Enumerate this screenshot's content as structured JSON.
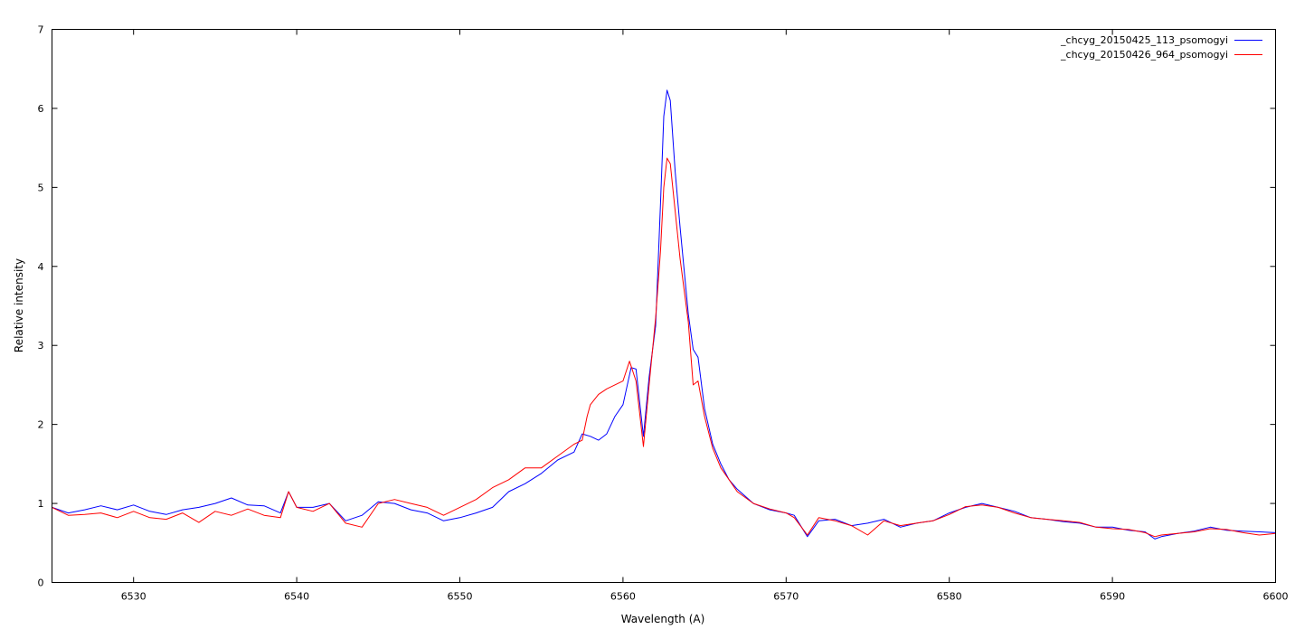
{
  "chart_data": {
    "type": "line",
    "title": "",
    "xlabel": "Wavelength (A)",
    "ylabel": "Relative intensity",
    "xlim": [
      6525,
      6600
    ],
    "ylim": [
      0,
      7
    ],
    "xticks": [
      6530,
      6540,
      6550,
      6560,
      6570,
      6580,
      6590,
      6600
    ],
    "yticks": [
      0,
      1,
      2,
      3,
      4,
      5,
      6,
      7
    ],
    "grid": false,
    "legend_position": "top-right",
    "series": [
      {
        "name": "_chcyg_20150425_113_psomogyi",
        "color": "#0000ff",
        "points": [
          [
            6525,
            0.95
          ],
          [
            6526,
            0.88
          ],
          [
            6527,
            0.92
          ],
          [
            6528,
            0.97
          ],
          [
            6529,
            0.92
          ],
          [
            6530,
            0.98
          ],
          [
            6531,
            0.9
          ],
          [
            6532,
            0.86
          ],
          [
            6533,
            0.92
          ],
          [
            6534,
            0.95
          ],
          [
            6535,
            1.0
          ],
          [
            6536,
            1.07
          ],
          [
            6537,
            0.98
          ],
          [
            6538,
            0.97
          ],
          [
            6539,
            0.88
          ],
          [
            6539.5,
            1.15
          ],
          [
            6540,
            0.95
          ],
          [
            6541,
            0.95
          ],
          [
            6542,
            1.0
          ],
          [
            6543,
            0.78
          ],
          [
            6544,
            0.85
          ],
          [
            6545,
            1.02
          ],
          [
            6546,
            1.0
          ],
          [
            6547,
            0.92
          ],
          [
            6548,
            0.88
          ],
          [
            6549,
            0.78
          ],
          [
            6550,
            0.82
          ],
          [
            6551,
            0.88
          ],
          [
            6552,
            0.95
          ],
          [
            6553,
            1.15
          ],
          [
            6554,
            1.25
          ],
          [
            6555,
            1.38
          ],
          [
            6556,
            1.55
          ],
          [
            6557,
            1.65
          ],
          [
            6557.5,
            1.88
          ],
          [
            6558,
            1.85
          ],
          [
            6558.5,
            1.8
          ],
          [
            6559,
            1.88
          ],
          [
            6559.5,
            2.1
          ],
          [
            6560,
            2.25
          ],
          [
            6560.5,
            2.72
          ],
          [
            6560.8,
            2.7
          ],
          [
            6561.25,
            1.85
          ],
          [
            6561.6,
            2.6
          ],
          [
            6562,
            3.25
          ],
          [
            6562.3,
            4.8
          ],
          [
            6562.5,
            5.9
          ],
          [
            6562.7,
            6.23
          ],
          [
            6562.9,
            6.1
          ],
          [
            6563.2,
            5.2
          ],
          [
            6563.5,
            4.5
          ],
          [
            6564,
            3.4
          ],
          [
            6564.3,
            2.95
          ],
          [
            6564.6,
            2.85
          ],
          [
            6565,
            2.2
          ],
          [
            6565.5,
            1.75
          ],
          [
            6566,
            1.5
          ],
          [
            6566.5,
            1.3
          ],
          [
            6567,
            1.18
          ],
          [
            6568,
            1.0
          ],
          [
            6569,
            0.92
          ],
          [
            6570,
            0.88
          ],
          [
            6570.5,
            0.85
          ],
          [
            6571.3,
            0.58
          ],
          [
            6572,
            0.78
          ],
          [
            6573,
            0.8
          ],
          [
            6574,
            0.72
          ],
          [
            6575,
            0.75
          ],
          [
            6576,
            0.8
          ],
          [
            6577,
            0.7
          ],
          [
            6578,
            0.75
          ],
          [
            6579,
            0.78
          ],
          [
            6580,
            0.88
          ],
          [
            6581,
            0.95
          ],
          [
            6582,
            1.0
          ],
          [
            6583,
            0.95
          ],
          [
            6584,
            0.9
          ],
          [
            6585,
            0.82
          ],
          [
            6586,
            0.8
          ],
          [
            6587,
            0.77
          ],
          [
            6588,
            0.75
          ],
          [
            6589,
            0.7
          ],
          [
            6590,
            0.7
          ],
          [
            6591,
            0.66
          ],
          [
            6592,
            0.64
          ],
          [
            6592.6,
            0.55
          ],
          [
            6593,
            0.58
          ],
          [
            6594,
            0.62
          ],
          [
            6595,
            0.65
          ],
          [
            6596,
            0.7
          ],
          [
            6597,
            0.66
          ],
          [
            6598,
            0.65
          ],
          [
            6599,
            0.64
          ],
          [
            6600,
            0.63
          ]
        ]
      },
      {
        "name": "_chcyg_20150426_964_psomogyi",
        "color": "#ff0000",
        "points": [
          [
            6525,
            0.95
          ],
          [
            6526,
            0.85
          ],
          [
            6527,
            0.86
          ],
          [
            6528,
            0.88
          ],
          [
            6529,
            0.82
          ],
          [
            6530,
            0.9
          ],
          [
            6531,
            0.82
          ],
          [
            6532,
            0.8
          ],
          [
            6533,
            0.88
          ],
          [
            6534,
            0.76
          ],
          [
            6535,
            0.9
          ],
          [
            6536,
            0.85
          ],
          [
            6537,
            0.93
          ],
          [
            6538,
            0.85
          ],
          [
            6539,
            0.82
          ],
          [
            6539.5,
            1.15
          ],
          [
            6540,
            0.95
          ],
          [
            6541,
            0.9
          ],
          [
            6542,
            1.0
          ],
          [
            6543,
            0.75
          ],
          [
            6544,
            0.7
          ],
          [
            6545,
            1.0
          ],
          [
            6546,
            1.05
          ],
          [
            6547,
            1.0
          ],
          [
            6548,
            0.95
          ],
          [
            6549,
            0.85
          ],
          [
            6550,
            0.95
          ],
          [
            6551,
            1.05
          ],
          [
            6552,
            1.2
          ],
          [
            6553,
            1.3
          ],
          [
            6554,
            1.45
          ],
          [
            6555,
            1.45
          ],
          [
            6556,
            1.6
          ],
          [
            6557,
            1.75
          ],
          [
            6557.5,
            1.8
          ],
          [
            6557.8,
            2.1
          ],
          [
            6558,
            2.25
          ],
          [
            6558.5,
            2.38
          ],
          [
            6559,
            2.45
          ],
          [
            6559.5,
            2.5
          ],
          [
            6560,
            2.55
          ],
          [
            6560.4,
            2.8
          ],
          [
            6560.8,
            2.55
          ],
          [
            6561.25,
            1.72
          ],
          [
            6561.6,
            2.5
          ],
          [
            6562,
            3.35
          ],
          [
            6562.3,
            4.2
          ],
          [
            6562.5,
            5.0
          ],
          [
            6562.7,
            5.37
          ],
          [
            6562.9,
            5.3
          ],
          [
            6563.2,
            4.7
          ],
          [
            6563.5,
            4.1
          ],
          [
            6564,
            3.3
          ],
          [
            6564.3,
            2.5
          ],
          [
            6564.6,
            2.55
          ],
          [
            6565,
            2.1
          ],
          [
            6565.5,
            1.7
          ],
          [
            6566,
            1.45
          ],
          [
            6566.5,
            1.3
          ],
          [
            6567,
            1.15
          ],
          [
            6568,
            1.0
          ],
          [
            6569,
            0.93
          ],
          [
            6570,
            0.88
          ],
          [
            6570.5,
            0.82
          ],
          [
            6571.3,
            0.6
          ],
          [
            6572,
            0.82
          ],
          [
            6573,
            0.78
          ],
          [
            6574,
            0.72
          ],
          [
            6575,
            0.6
          ],
          [
            6576,
            0.78
          ],
          [
            6577,
            0.72
          ],
          [
            6578,
            0.75
          ],
          [
            6579,
            0.78
          ],
          [
            6580,
            0.86
          ],
          [
            6581,
            0.96
          ],
          [
            6582,
            0.98
          ],
          [
            6583,
            0.95
          ],
          [
            6584,
            0.88
          ],
          [
            6585,
            0.82
          ],
          [
            6586,
            0.8
          ],
          [
            6587,
            0.78
          ],
          [
            6588,
            0.76
          ],
          [
            6589,
            0.7
          ],
          [
            6590,
            0.68
          ],
          [
            6591,
            0.67
          ],
          [
            6592,
            0.63
          ],
          [
            6592.6,
            0.58
          ],
          [
            6593,
            0.6
          ],
          [
            6594,
            0.62
          ],
          [
            6595,
            0.64
          ],
          [
            6596,
            0.68
          ],
          [
            6597,
            0.67
          ],
          [
            6598,
            0.63
          ],
          [
            6599,
            0.6
          ],
          [
            6600,
            0.62
          ]
        ]
      }
    ]
  }
}
